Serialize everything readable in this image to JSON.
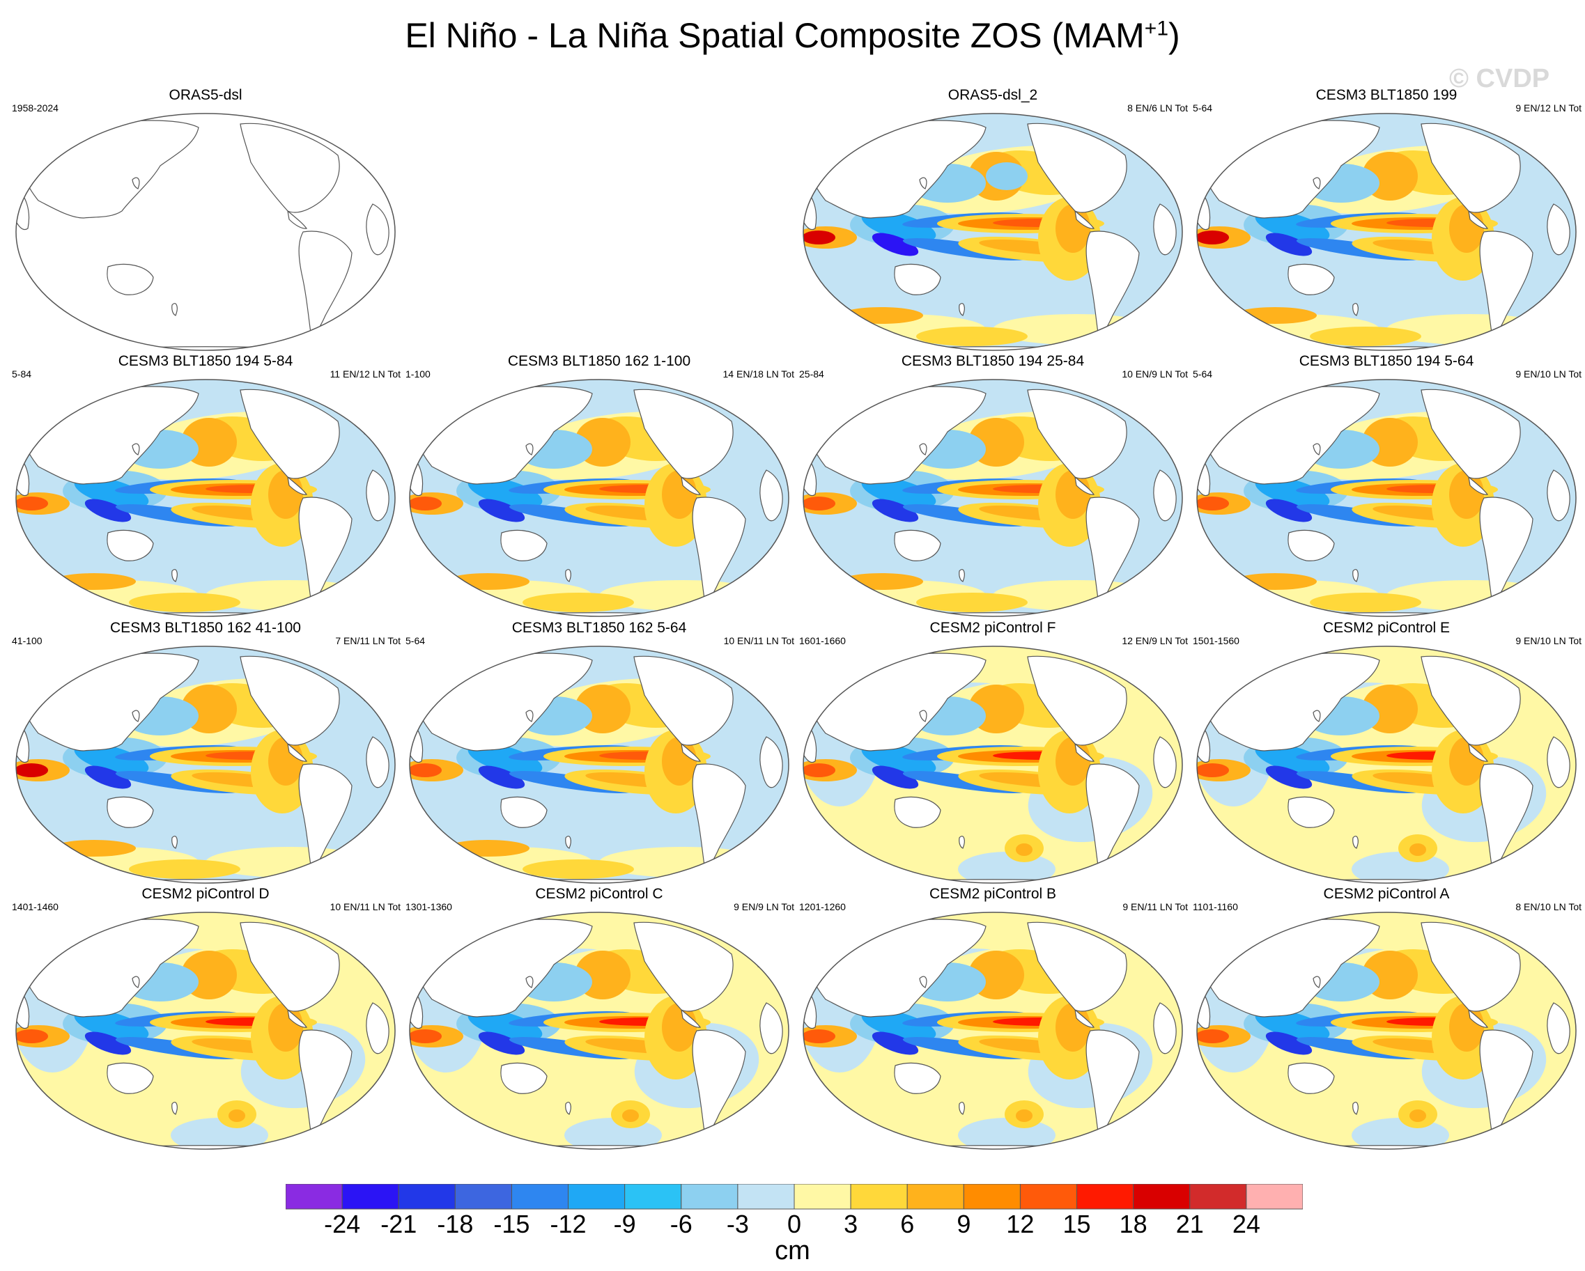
{
  "title": {
    "main": "El Niño - La Niña Spatial Composite ZOS (MAM",
    "superscript": "+1",
    "close": ")"
  },
  "watermark": "© CVDP",
  "panels": [
    {
      "title": "ORAS5-dsl",
      "left": "1958-2024",
      "right": "",
      "pattern": "empty"
    },
    {
      "title": "ORAS5-dsl_2",
      "left": "",
      "right": "8 EN/6 LN Tot",
      "pattern": "obs"
    },
    {
      "title": "CESM3 BLT1850 199",
      "left": "5-64",
      "right": "9 EN/12 LN Tot",
      "pattern": "strong"
    },
    {
      "title": "CESM3 BLT1850 194 5-84",
      "left": "5-84",
      "right": "11 EN/12 LN Tot",
      "pattern": "cesm3"
    },
    {
      "title": "CESM3 BLT1850 162 1-100",
      "left": "1-100",
      "right": "14 EN/18 LN Tot",
      "pattern": "cesm3"
    },
    {
      "title": "CESM3 BLT1850 194 25-84",
      "left": "25-84",
      "right": "10 EN/9 LN Tot",
      "pattern": "cesm3"
    },
    {
      "title": "CESM3 BLT1850 194 5-64",
      "left": "5-64",
      "right": "9 EN/10 LN Tot",
      "pattern": "cesm3"
    },
    {
      "title": "CESM3 BLT1850 162 41-100",
      "left": "41-100",
      "right": "7 EN/11 LN Tot",
      "pattern": "strong"
    },
    {
      "title": "CESM3 BLT1850 162 5-64",
      "left": "5-64",
      "right": "10 EN/11 LN Tot",
      "pattern": "cesm3"
    },
    {
      "title": "CESM2 piControl F",
      "left": "1601-1660",
      "right": "12 EN/9 LN Tot",
      "pattern": "cesm2"
    },
    {
      "title": "CESM2 piControl E",
      "left": "1501-1560",
      "right": "9 EN/10 LN Tot",
      "pattern": "cesm2"
    },
    {
      "title": "CESM2 piControl D",
      "left": "1401-1460",
      "right": "10 EN/11 LN Tot",
      "pattern": "cesm2"
    },
    {
      "title": "CESM2 piControl C",
      "left": "1301-1360",
      "right": "9 EN/9 LN Tot",
      "pattern": "cesm2"
    },
    {
      "title": "CESM2 piControl B",
      "left": "1201-1260",
      "right": "9 EN/11 LN Tot",
      "pattern": "cesm2"
    },
    {
      "title": "CESM2 piControl A",
      "left": "1101-1160",
      "right": "8 EN/10 LN Tot",
      "pattern": "cesm2"
    }
  ],
  "chart_data": {
    "type": "heatmap",
    "variable": "ZOS",
    "season": "MAM+1",
    "colorbar": {
      "units": "cm",
      "levels": [
        -24,
        -21,
        -18,
        -15,
        -12,
        -9,
        -6,
        -3,
        0,
        3,
        6,
        9,
        12,
        15,
        18,
        21,
        24
      ],
      "tick_labels": [
        "-24",
        "-21",
        "-18",
        "-15",
        "-12",
        "-9",
        "-6",
        "-3",
        "0",
        "3",
        "6",
        "9",
        "12",
        "15",
        "18",
        "21",
        "24"
      ],
      "colors": [
        "#8a2be2",
        "#2b14f5",
        "#2238e8",
        "#3d66e0",
        "#2e86f0",
        "#1fa8f5",
        "#2bc2f5",
        "#8dd0f0",
        "#c3e3f4",
        "#fff8a5",
        "#ffd83a",
        "#ffb21c",
        "#ff8c00",
        "#ff5a0a",
        "#ff1a00",
        "#d90000",
        "#d22b2b",
        "#ffb0b0"
      ]
    }
  }
}
